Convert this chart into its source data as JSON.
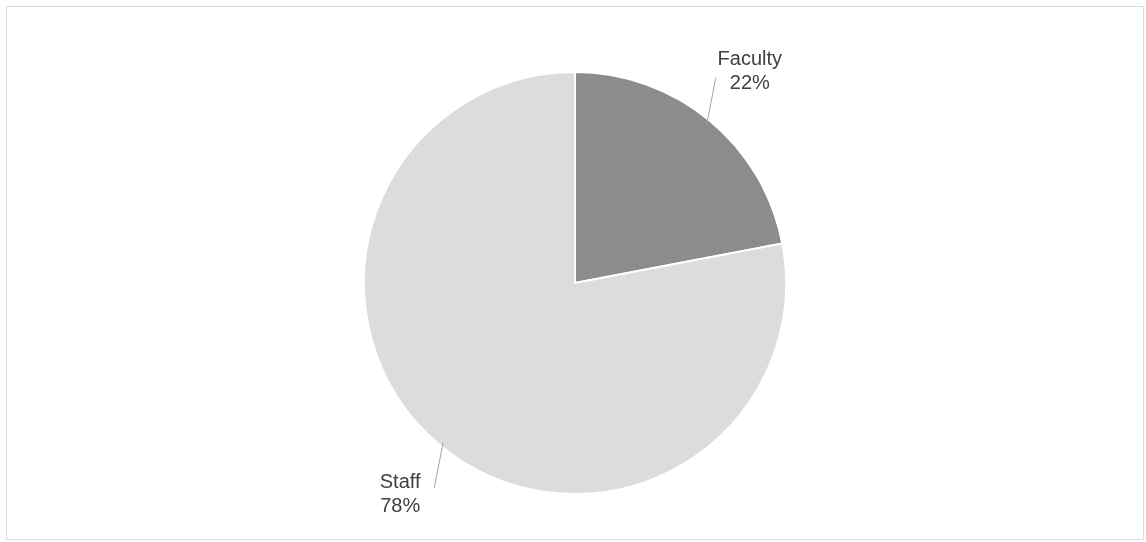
{
  "chart_data": {
    "type": "pie",
    "categories": [
      "Faculty",
      "Staff"
    ],
    "values": [
      22,
      78
    ],
    "colors": [
      "#8c8c8c",
      "#dcdcdc"
    ],
    "value_labels": [
      "22%",
      "78%"
    ]
  }
}
